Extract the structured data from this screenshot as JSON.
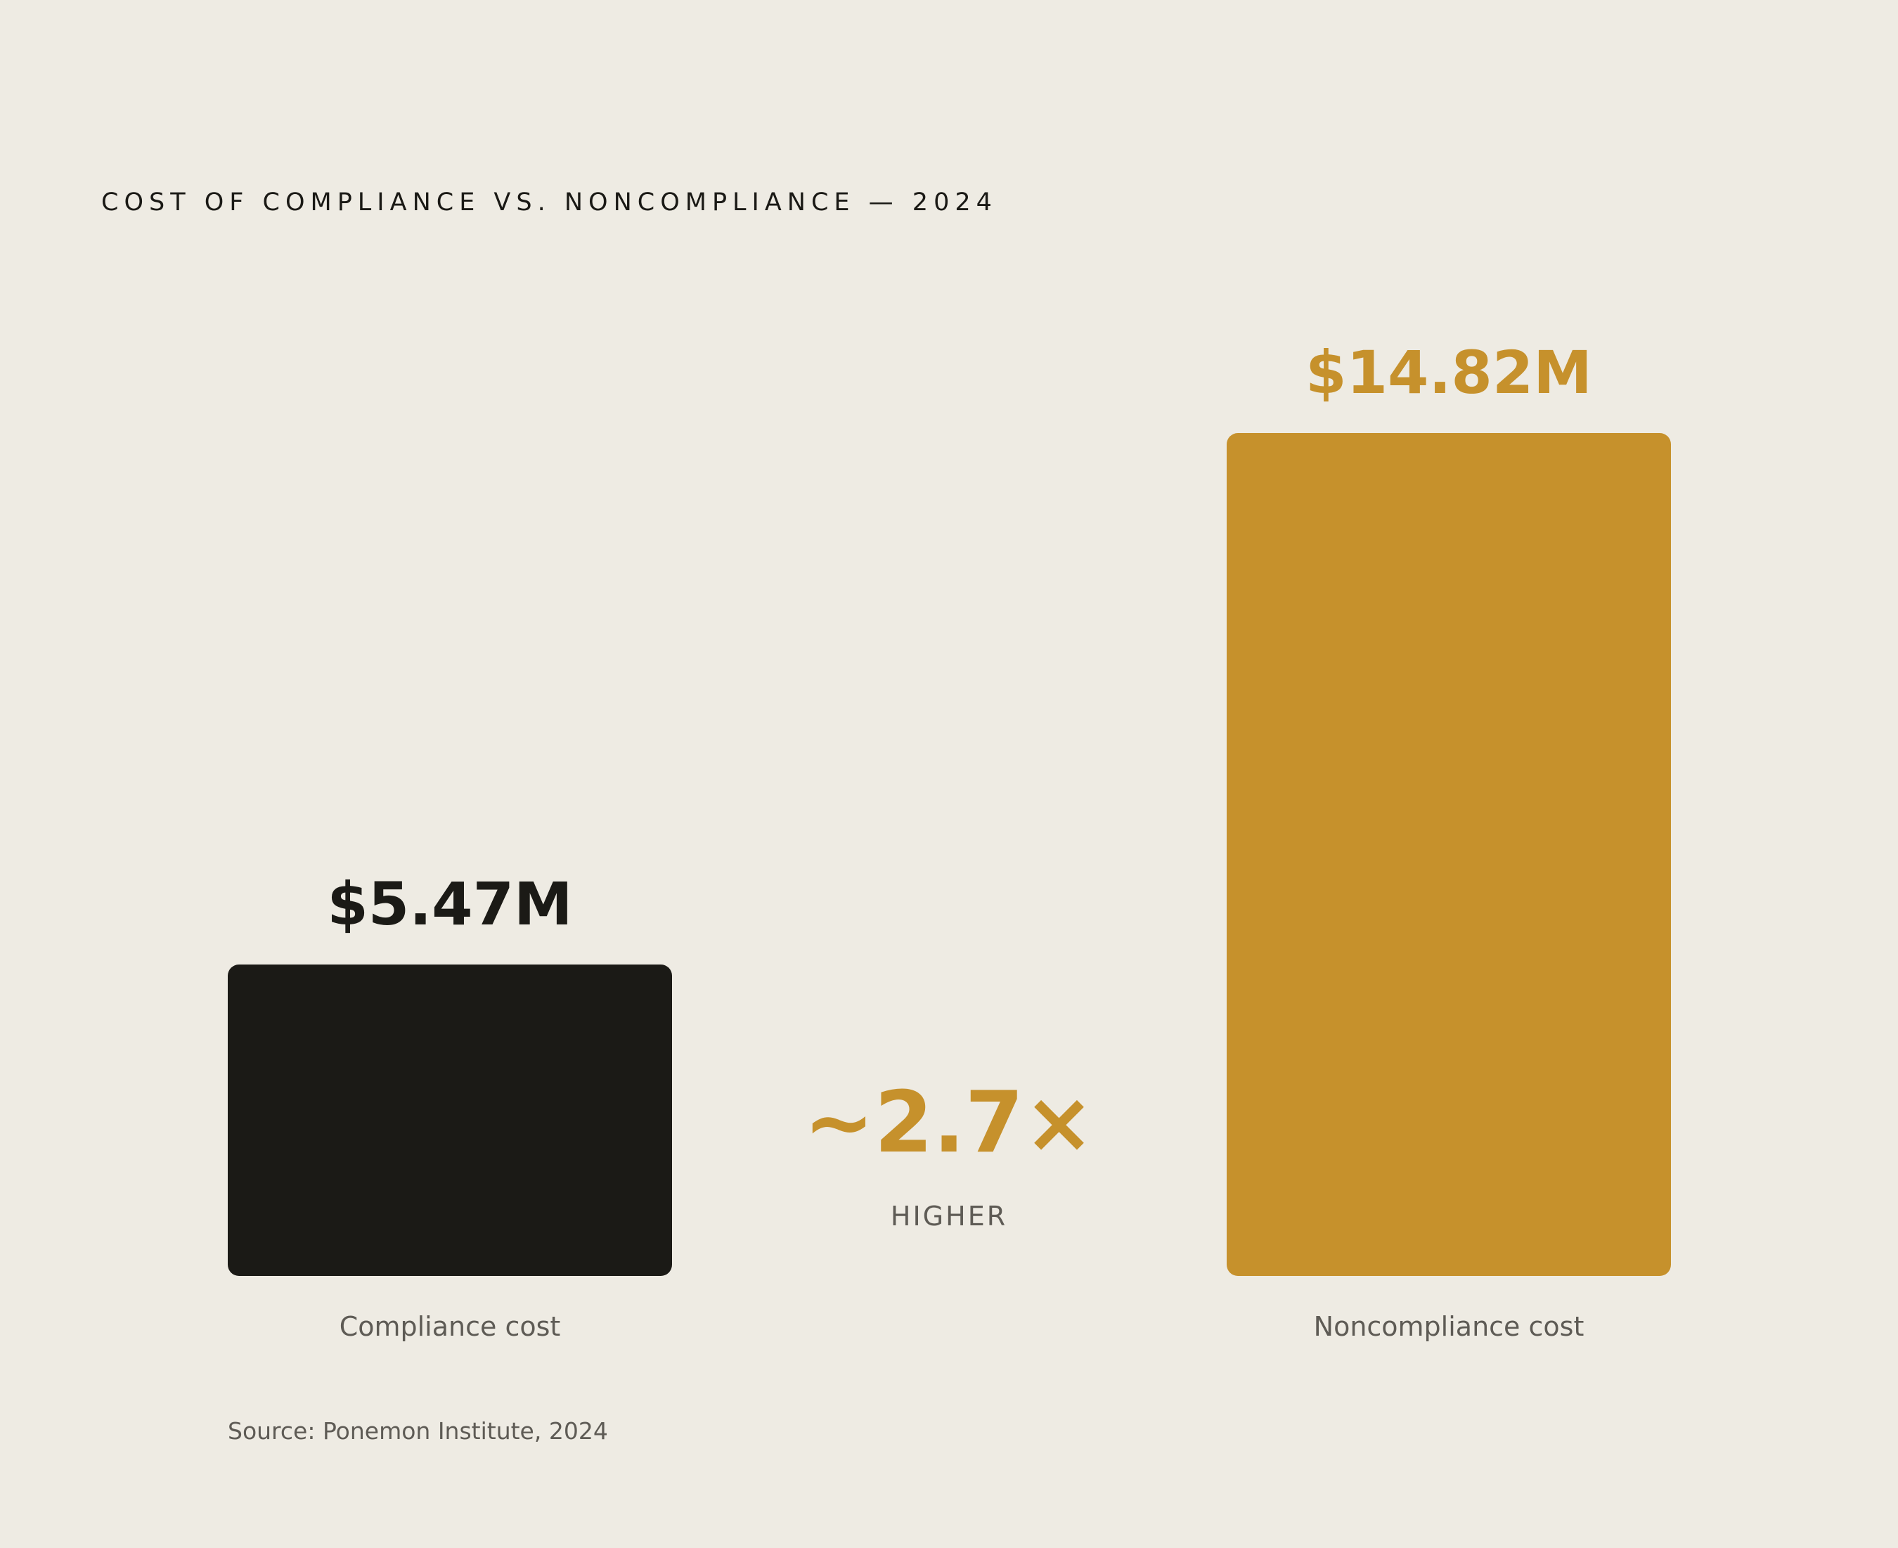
{
  "chart_data": {
    "type": "bar",
    "title": "COST OF COMPLIANCE VS. NONCOMPLIANCE — 2024",
    "categories": [
      "Compliance cost",
      "Noncompliance cost"
    ],
    "values": [
      5.47,
      14.82
    ],
    "value_labels": [
      "$5.47M",
      "$14.82M"
    ],
    "unit": "$M",
    "colors": [
      "#1b1a16",
      "#c6912c"
    ],
    "label_colors": [
      "#1b1a16",
      "#c6912c"
    ],
    "xlabel": "",
    "ylabel": "",
    "grid": false,
    "legend": "none",
    "annotation": {
      "value": "~2.7×",
      "subtext": "HIGHER",
      "color": "#c6912c"
    },
    "source": "Source: Ponemon Institute, 2024"
  }
}
